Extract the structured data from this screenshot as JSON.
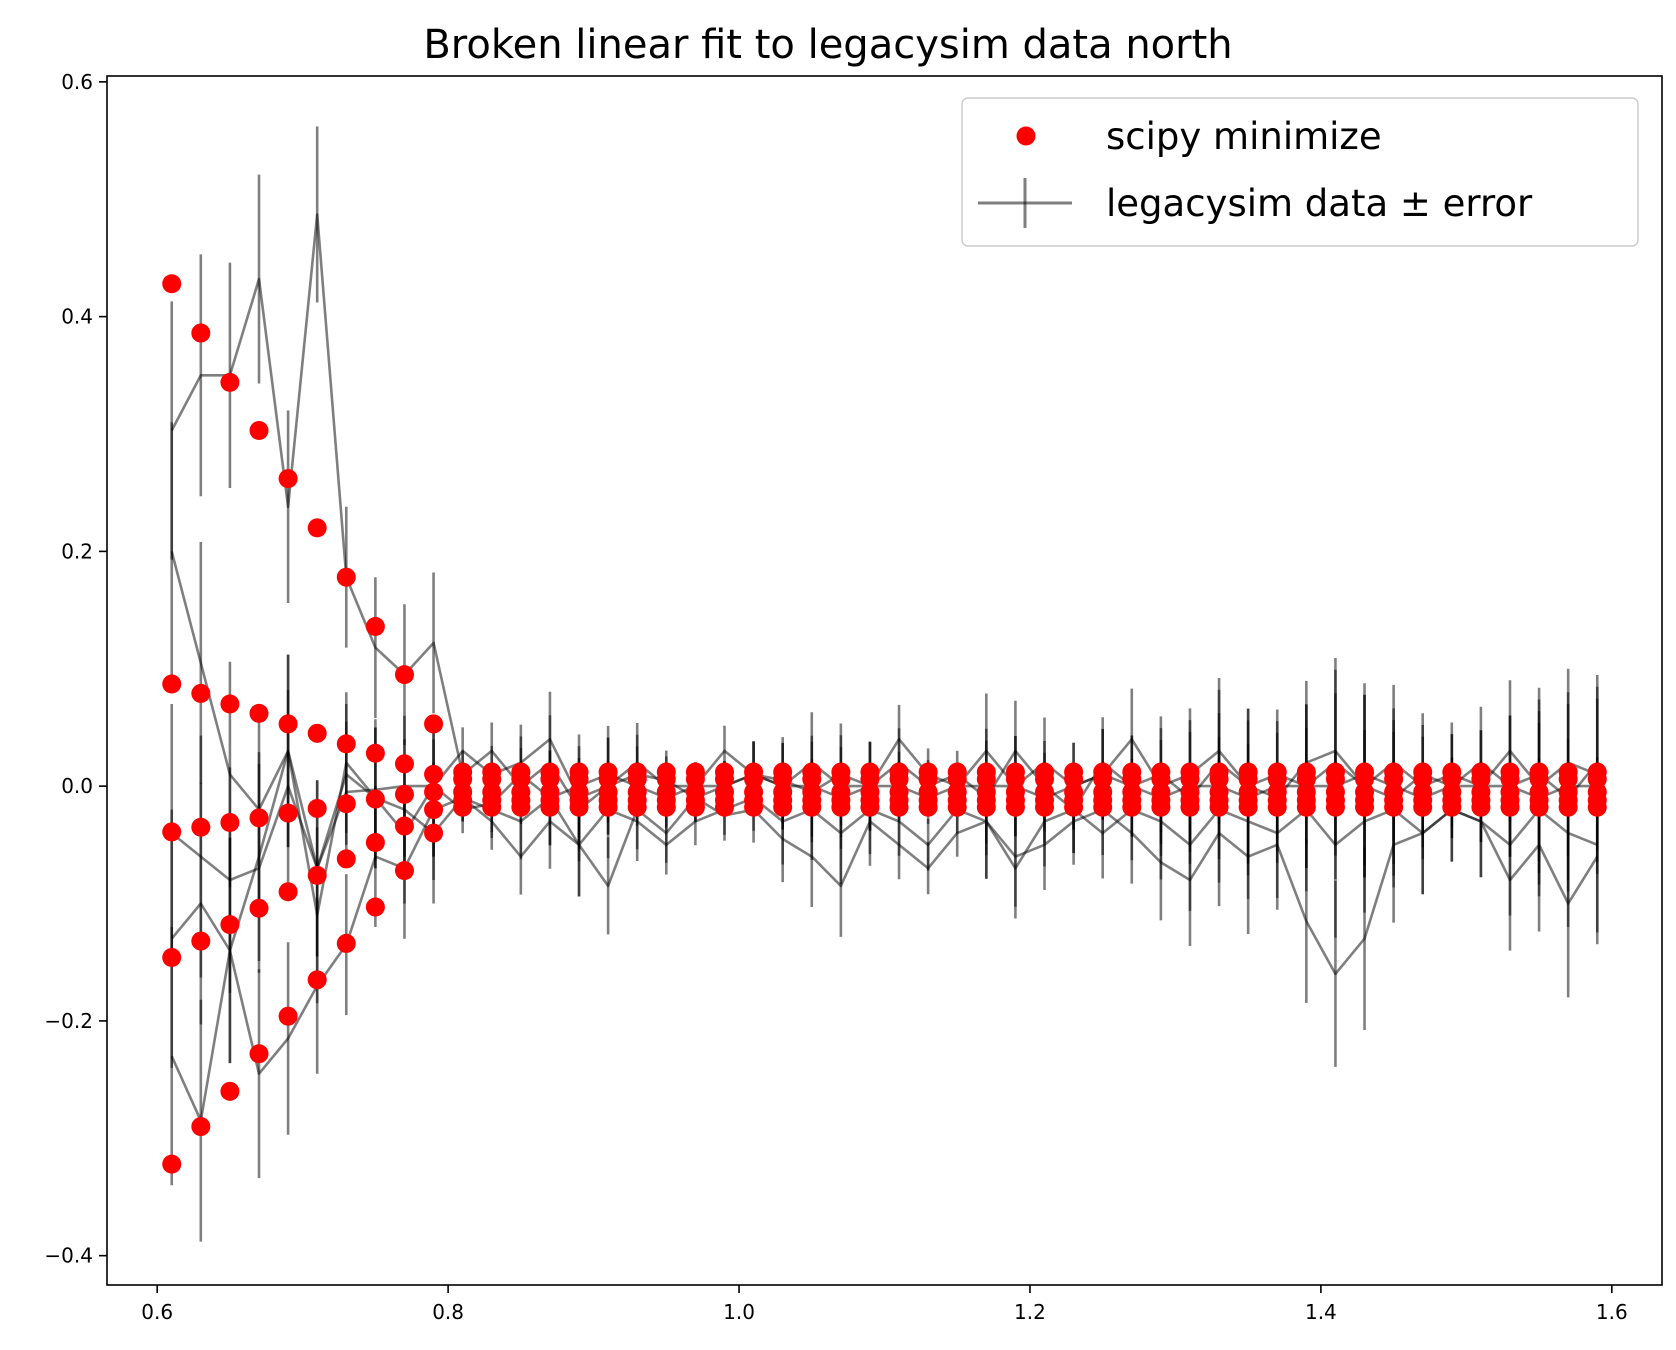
{
  "chart_data": {
    "type": "scatter",
    "title": "Broken linear fit to legacysim data north",
    "xlabel": "",
    "ylabel": "",
    "xlim": [
      0.5655,
      1.6345
    ],
    "ylim": [
      -0.425,
      0.605
    ],
    "xticks": [
      0.6,
      0.8,
      1.0,
      1.2,
      1.4,
      1.6
    ],
    "xtick_labels": [
      "0.6",
      "0.8",
      "1.0",
      "1.2",
      "1.4",
      "1.6"
    ],
    "yticks": [
      -0.4,
      -0.2,
      0.0,
      0.2,
      0.4,
      0.6
    ],
    "ytick_labels": [
      "−0.4",
      "−0.2",
      "0.0",
      "0.2",
      "0.4",
      "0.6"
    ],
    "grid": false,
    "legend_position": "upper right",
    "colors": {
      "fit": "#ff0000",
      "data": "#000000",
      "data_alpha": 0.5
    },
    "legend": [
      {
        "label": "scipy minimize",
        "marker": "dot",
        "color": "#ff0000"
      },
      {
        "label": "legacysim data ± error",
        "marker": "errorbar-line",
        "color": "#000000"
      }
    ],
    "x": [
      0.61,
      0.63,
      0.65,
      0.67,
      0.69,
      0.71,
      0.73,
      0.75,
      0.77,
      0.79,
      0.81,
      0.83,
      0.85,
      0.87,
      0.89,
      0.91,
      0.93,
      0.95,
      0.97,
      0.99,
      1.01,
      1.03,
      1.05,
      1.07,
      1.09,
      1.11,
      1.13,
      1.15,
      1.17,
      1.19,
      1.21,
      1.23,
      1.25,
      1.27,
      1.29,
      1.31,
      1.33,
      1.35,
      1.37,
      1.39,
      1.41,
      1.43,
      1.45,
      1.47,
      1.49,
      1.51,
      1.53,
      1.55,
      1.57,
      1.59
    ],
    "series": [
      {
        "role": "fit",
        "values": [
          0.428,
          0.386,
          0.344,
          0.303,
          0.262,
          0.22,
          0.178,
          0.136,
          0.095,
          0.053,
          0.012,
          0.012,
          0.012,
          0.012,
          0.012,
          0.012,
          0.012,
          0.012,
          0.012,
          0.012,
          0.012,
          0.012,
          0.012,
          0.012,
          0.012,
          0.012,
          0.012,
          0.012,
          0.012,
          0.012,
          0.012,
          0.012,
          0.012,
          0.012,
          0.012,
          0.012,
          0.012,
          0.012,
          0.012,
          0.012,
          0.012,
          0.012,
          0.012,
          0.012,
          0.012,
          0.012,
          0.012,
          0.012,
          0.012,
          0.012
        ]
      },
      {
        "role": "fit",
        "values": [
          0.087,
          0.079,
          0.07,
          0.062,
          0.053,
          0.045,
          0.036,
          0.028,
          0.019,
          0.01,
          0.006,
          0.006,
          0.006,
          0.006,
          0.006,
          0.006,
          0.006,
          0.006,
          0.006,
          0.006,
          0.006,
          0.006,
          0.006,
          0.006,
          0.006,
          0.006,
          0.006,
          0.006,
          0.006,
          0.006,
          0.006,
          0.006,
          0.006,
          0.006,
          0.006,
          0.006,
          0.006,
          0.006,
          0.006,
          0.006,
          0.006,
          0.006,
          0.006,
          0.006,
          0.006,
          0.006,
          0.006,
          0.006,
          0.006,
          0.006
        ]
      },
      {
        "role": "fit",
        "values": [
          -0.039,
          -0.035,
          -0.031,
          -0.027,
          -0.023,
          -0.019,
          -0.015,
          -0.011,
          -0.007,
          -0.005,
          -0.005,
          -0.005,
          -0.005,
          -0.005,
          -0.005,
          -0.005,
          -0.005,
          -0.005,
          -0.005,
          -0.005,
          -0.005,
          -0.005,
          -0.005,
          -0.005,
          -0.005,
          -0.005,
          -0.005,
          -0.005,
          -0.005,
          -0.005,
          -0.005,
          -0.005,
          -0.005,
          -0.005,
          -0.005,
          -0.005,
          -0.005,
          -0.005,
          -0.005,
          -0.005,
          -0.005,
          -0.005,
          -0.005,
          -0.005,
          -0.005,
          -0.005,
          -0.005,
          -0.005,
          -0.005,
          -0.005
        ]
      },
      {
        "role": "fit",
        "values": [
          -0.146,
          -0.132,
          -0.118,
          -0.104,
          -0.09,
          -0.076,
          -0.062,
          -0.048,
          -0.034,
          -0.02,
          -0.012,
          -0.012,
          -0.012,
          -0.012,
          -0.012,
          -0.012,
          -0.012,
          -0.012,
          -0.012,
          -0.012,
          -0.012,
          -0.012,
          -0.012,
          -0.012,
          -0.012,
          -0.012,
          -0.012,
          -0.012,
          -0.012,
          -0.012,
          -0.012,
          -0.012,
          -0.012,
          -0.012,
          -0.012,
          -0.012,
          -0.012,
          -0.012,
          -0.012,
          -0.012,
          -0.012,
          -0.012,
          -0.012,
          -0.012,
          -0.012,
          -0.012,
          -0.012,
          -0.012,
          -0.012,
          -0.012
        ]
      },
      {
        "role": "fit",
        "values": [
          -0.322,
          -0.29,
          -0.26,
          -0.228,
          -0.196,
          -0.165,
          -0.134,
          -0.103,
          -0.072,
          -0.04,
          -0.018,
          -0.018,
          -0.018,
          -0.018,
          -0.018,
          -0.018,
          -0.018,
          -0.018,
          -0.018,
          -0.018,
          -0.018,
          -0.018,
          -0.018,
          -0.018,
          -0.018,
          -0.018,
          -0.018,
          -0.018,
          -0.018,
          -0.018,
          -0.018,
          -0.018,
          -0.018,
          -0.018,
          -0.018,
          -0.018,
          -0.018,
          -0.018,
          -0.018,
          -0.018,
          -0.018,
          -0.018,
          -0.018,
          -0.018,
          -0.018,
          -0.018,
          -0.018,
          -0.018,
          -0.018,
          -0.018
        ]
      },
      {
        "role": "data",
        "values": [
          0.303,
          0.35,
          0.35,
          0.432,
          0.238,
          0.487,
          0.178,
          0.118,
          0.095,
          0.122,
          0.01,
          0.03,
          0.0,
          0.02,
          -0.02,
          0.0,
          0.01,
          0.005,
          -0.01,
          0.0,
          0.01,
          0.005,
          -0.005,
          0.01,
          0.0,
          0.02,
          0.0,
          0.01,
          -0.01,
          0.03,
          0.0,
          -0.02,
          0.02,
          0.0,
          0.01,
          -0.01,
          0.02,
          0.0,
          0.01,
          0.0,
          0.02,
          0.0,
          -0.01,
          0.01,
          0.0,
          0.02,
          0.0,
          0.01,
          -0.01,
          0.02
        ]
      },
      {
        "role": "data",
        "values": [
          0.2,
          0.105,
          0.01,
          -0.02,
          0.03,
          -0.11,
          0.02,
          -0.01,
          -0.04,
          0.0,
          0.03,
          0.01,
          0.02,
          0.04,
          -0.01,
          0.0,
          0.02,
          0.0,
          0.0,
          0.03,
          0.01,
          0.0,
          0.02,
          0.0,
          0.0,
          0.04,
          0.01,
          0.0,
          0.03,
          0.0,
          0.02,
          0.0,
          0.01,
          0.04,
          0.0,
          0.01,
          0.03,
          0.0,
          -0.01,
          0.02,
          0.03,
          0.0,
          0.02,
          0.0,
          0.01,
          0.0,
          0.03,
          0.0,
          0.02,
          0.01
        ]
      },
      {
        "role": "data",
        "values": [
          -0.04,
          -0.06,
          -0.08,
          -0.07,
          0.0,
          -0.07,
          -0.005,
          -0.003,
          0.0,
          0.0,
          -0.02,
          -0.015,
          0.01,
          -0.01,
          0.0,
          0.01,
          0.0,
          -0.01,
          0.0,
          0.0,
          0.01,
          0.0,
          0.0,
          -0.01,
          0.0,
          0.0,
          -0.01,
          0.0,
          0.0,
          0.0,
          -0.01,
          0.0,
          0.01,
          0.0,
          -0.01,
          0.0,
          0.0,
          -0.01,
          0.0,
          0.0,
          0.0,
          0.01,
          0.0,
          -0.01,
          0.0,
          0.0,
          0.0,
          -0.01,
          0.0,
          0.0
        ]
      },
      {
        "role": "data",
        "values": [
          -0.13,
          -0.1,
          -0.14,
          -0.06,
          0.03,
          -0.07,
          0.01,
          -0.01,
          -0.02,
          -0.04,
          -0.01,
          -0.02,
          -0.03,
          -0.01,
          -0.05,
          -0.02,
          -0.03,
          -0.05,
          -0.03,
          -0.02,
          -0.01,
          -0.03,
          -0.02,
          -0.04,
          -0.02,
          -0.03,
          -0.05,
          -0.02,
          -0.03,
          -0.07,
          -0.03,
          -0.02,
          -0.04,
          -0.02,
          -0.03,
          -0.05,
          -0.02,
          -0.03,
          -0.04,
          -0.02,
          -0.05,
          -0.03,
          -0.02,
          -0.04,
          -0.02,
          -0.03,
          -0.05,
          -0.02,
          -0.04,
          -0.05
        ]
      },
      {
        "role": "data",
        "values": [
          -0.23,
          -0.285,
          -0.14,
          -0.245,
          -0.215,
          -0.17,
          -0.135,
          -0.06,
          -0.07,
          -0.02,
          -0.01,
          -0.03,
          -0.06,
          -0.03,
          -0.05,
          -0.085,
          -0.02,
          -0.04,
          -0.01,
          -0.025,
          -0.02,
          -0.045,
          -0.06,
          -0.085,
          -0.03,
          -0.05,
          -0.07,
          -0.04,
          -0.03,
          -0.06,
          -0.05,
          -0.03,
          -0.02,
          -0.04,
          -0.065,
          -0.08,
          -0.04,
          -0.06,
          -0.05,
          -0.115,
          -0.16,
          -0.13,
          -0.05,
          -0.04,
          -0.02,
          -0.03,
          -0.08,
          -0.05,
          -0.1,
          -0.06
        ]
      }
    ]
  }
}
